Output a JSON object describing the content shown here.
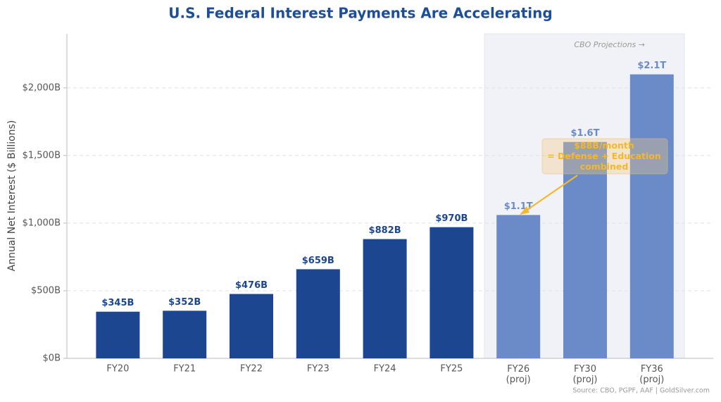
{
  "chart_data": {
    "type": "bar",
    "title": "U.S. Federal Interest Payments Are Accelerating",
    "y_label": "Annual Net Interest ($ Billions)",
    "categories": [
      "FY20",
      "FY21",
      "FY22",
      "FY23",
      "FY24",
      "FY25",
      "FY26\n(proj)",
      "FY30\n(proj)",
      "FY36\n(proj)"
    ],
    "values": [
      345,
      352,
      476,
      659,
      882,
      970,
      1060,
      1600,
      2100
    ],
    "value_labels": [
      "$345B",
      "$352B",
      "$476B",
      "$659B",
      "$882B",
      "$970B",
      "$1.1T",
      "$1.6T",
      "$2.1T"
    ],
    "colors": [
      "#1c4690",
      "#1c4690",
      "#1c4690",
      "#1c4690",
      "#1c4690",
      "#1c4690",
      "#6b8bc8",
      "#6b8bc8",
      "#6b8bc8"
    ],
    "ylim": [
      0,
      2400
    ],
    "yticks": [
      {
        "value": 0,
        "label": "$0B"
      },
      {
        "value": 500,
        "label": "$500B"
      },
      {
        "value": 1000,
        "label": "$1,000B"
      },
      {
        "value": 1500,
        "label": "$1,500B"
      },
      {
        "value": 2000,
        "label": "$2,000B"
      }
    ],
    "grid": true,
    "annotations": [
      "CBO Projections →",
      "$88B/month\n= Defense + Education\ncombined"
    ],
    "source": "Source: CBO, PGPF, AAF  |  GoldSilver.com"
  }
}
